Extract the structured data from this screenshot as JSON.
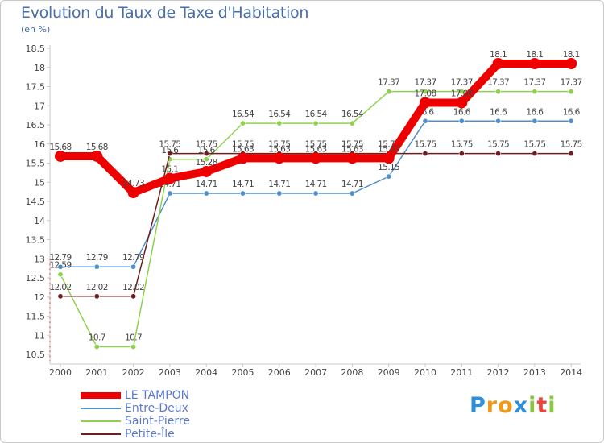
{
  "title": "Evolution du Taux de Taxe d'Habitation",
  "unit_label": "(en %)",
  "chart_data": {
    "type": "line",
    "title": "Evolution du Taux de Taxe d'Habitation",
    "ylabel": "(en %)",
    "xlabel": "",
    "grid": false,
    "ylim": [
      10.5,
      18.5
    ],
    "yticks": [
      "10.5",
      "11",
      "11.5",
      "12",
      "12.5",
      "13",
      "13.5",
      "14",
      "14.5",
      "15",
      "15.5",
      "16",
      "16.5",
      "17",
      "17.5",
      "18",
      "18.5"
    ],
    "categories": [
      "2000",
      "2001",
      "2002",
      "2003",
      "2004",
      "2005",
      "2006",
      "2007",
      "2008",
      "2009",
      "2010",
      "2011",
      "2012",
      "2013",
      "2014"
    ],
    "series": [
      {
        "name": "Entre-Deux",
        "color": "#4f8fcb",
        "values": [
          12.79,
          12.79,
          12.79,
          14.71,
          14.71,
          14.71,
          14.71,
          14.71,
          14.71,
          15.15,
          16.6,
          16.6,
          16.6,
          16.6,
          16.6
        ],
        "labels": [
          "12.79",
          "12.79",
          "12.79",
          "14.71",
          "14.71",
          "14.71",
          "14.71",
          "14.71",
          "14.71",
          "15.15",
          "16.6",
          "16.6",
          "16.6",
          "16.6",
          "16.6"
        ]
      },
      {
        "name": "Saint-Pierre",
        "color": "#8fd14f",
        "values": [
          12.59,
          10.7,
          10.7,
          15.6,
          15.6,
          16.54,
          16.54,
          16.54,
          16.54,
          17.37,
          17.37,
          17.37,
          17.37,
          17.37,
          17.37
        ],
        "labels": [
          "12.59",
          "10.7",
          "10.7",
          "15.6",
          "15.6",
          "16.54",
          "16.54",
          "16.54",
          "16.54",
          "17.37",
          "17.37",
          "17.37",
          "17.37",
          "17.37",
          "17.37"
        ]
      },
      {
        "name": "Petite-Île",
        "color": "#6b1f1f",
        "values": [
          12.02,
          12.02,
          12.02,
          15.75,
          15.75,
          15.75,
          15.75,
          15.75,
          15.75,
          15.75,
          15.75,
          15.75,
          15.75,
          15.75,
          15.75
        ],
        "labels": [
          "12.02",
          "12.02",
          "12.02",
          "15.75",
          "15.75",
          "15.75",
          "15.75",
          "15.75",
          "15.75",
          "15.75",
          "15.75",
          "15.75",
          "15.75",
          "15.75",
          "15.75"
        ]
      },
      {
        "name": "LE TAMPON",
        "color": "#ee0000",
        "values": [
          15.68,
          15.68,
          14.73,
          15.1,
          15.28,
          15.63,
          15.63,
          15.63,
          15.63,
          15.63,
          17.08,
          17.08,
          18.1,
          18.1,
          18.1
        ],
        "labels": [
          "15.68",
          "15.68",
          "14.73",
          "15.1",
          "15.28",
          "15.63",
          "15.63",
          "15.63",
          "15.63",
          "15.63",
          "17.08",
          "17.08",
          "18.1",
          "18.1",
          "18.1"
        ]
      }
    ]
  },
  "legend": [
    {
      "label": "LE TAMPON",
      "color": "#ee0000"
    },
    {
      "label": "Entre-Deux",
      "color": "#4f8fcb"
    },
    {
      "label": "Saint-Pierre",
      "color": "#8fd14f"
    },
    {
      "label": "Petite-Île",
      "color": "#6b1f1f"
    }
  ],
  "logo": {
    "letters": [
      "P",
      "r",
      "o",
      "x",
      "i",
      "t",
      "i"
    ],
    "colors": [
      "#2f8fd8",
      "#f09a1a",
      "#f09a1a",
      "#2f8fd8",
      "#8cc63f",
      "#e8463c",
      "#8cc63f"
    ]
  }
}
